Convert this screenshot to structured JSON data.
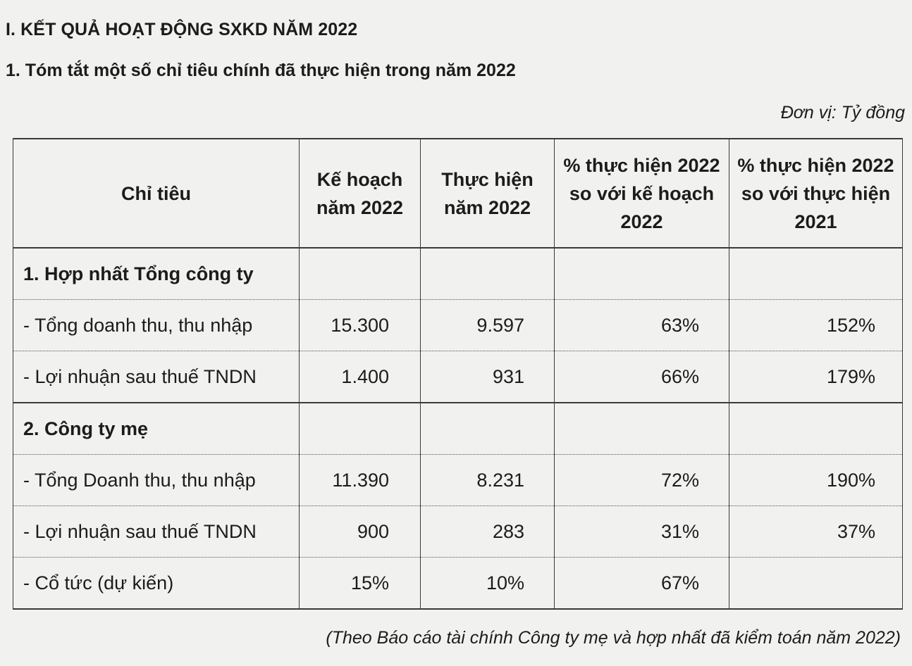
{
  "heading": "I. KẾT QUẢ HOẠT ĐỘNG SXKD NĂM 2022",
  "subheading": "1. Tóm tắt một số chỉ tiêu chính đã thực hiện trong năm 2022",
  "unit_note": "Đơn vị: Tỷ đồng",
  "table": {
    "headers": [
      "Chỉ tiêu",
      "Kế hoạch năm 2022",
      "Thực hiện năm 2022",
      "% thực hiện 2022 so với kế hoạch 2022",
      "% thực hiện 2022 so với thực hiện 2021"
    ],
    "rows": [
      {
        "label": "1. Hợp nhất Tổng công ty",
        "plan": "",
        "actual": "",
        "pct_plan": "",
        "pct_prev": ""
      },
      {
        "label": "- Tổng doanh thu, thu nhập",
        "plan": "15.300",
        "actual": "9.597",
        "pct_plan": "63%",
        "pct_prev": "152%"
      },
      {
        "label": "- Lợi nhuận sau thuế TNDN",
        "plan": "1.400",
        "actual": "931",
        "pct_plan": "66%",
        "pct_prev": "179%"
      },
      {
        "label": "2. Công ty mẹ",
        "plan": "",
        "actual": "",
        "pct_plan": "",
        "pct_prev": ""
      },
      {
        "label": "- Tổng Doanh thu, thu nhập",
        "plan": "11.390",
        "actual": "8.231",
        "pct_plan": "72%",
        "pct_prev": "190%"
      },
      {
        "label": "- Lợi nhuận sau thuế TNDN",
        "plan": "900",
        "actual": "283",
        "pct_plan": "31%",
        "pct_prev": "37%"
      },
      {
        "label": "- Cổ tức (dự kiến)",
        "plan": "15%",
        "actual": "10%",
        "pct_plan": "67%",
        "pct_prev": ""
      }
    ]
  },
  "source_note": "(Theo Báo cáo tài chính Công ty mẹ và hợp nhất đã kiểm toán năm 2022)"
}
